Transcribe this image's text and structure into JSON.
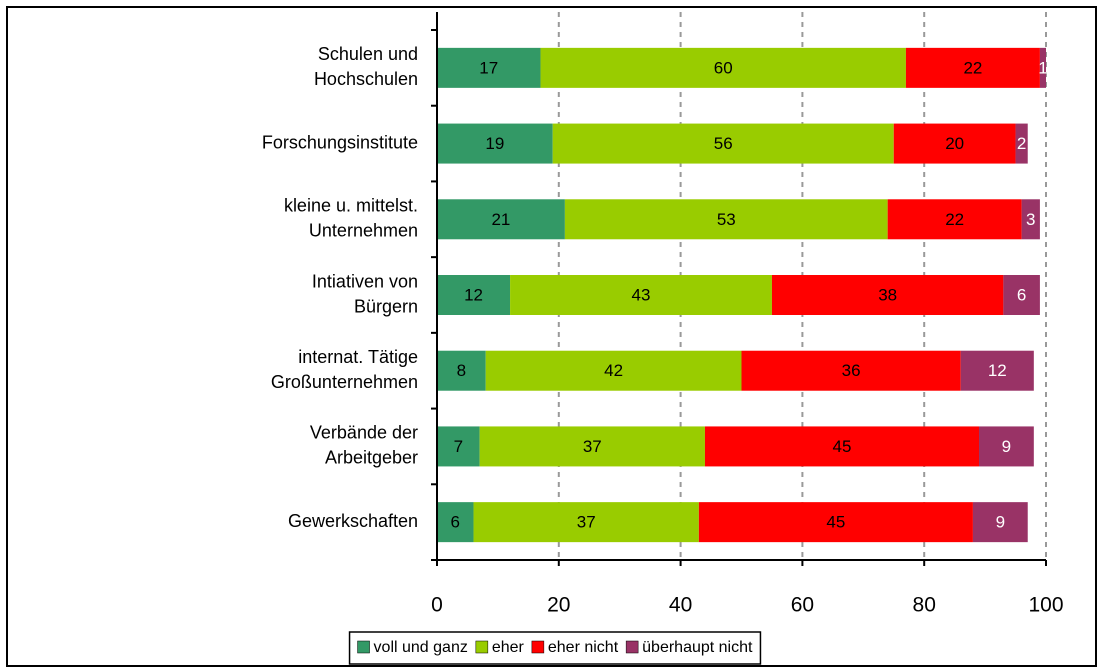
{
  "chart_data": {
    "type": "stacked-barh",
    "categories": [
      [
        "Schulen und",
        "Hochschulen"
      ],
      [
        "Forschungsinstitute"
      ],
      [
        "kleine u. mittelst.",
        "Unternehmen"
      ],
      [
        "Intiativen von",
        "Bürgern"
      ],
      [
        "internat. Tätige",
        "Großunternehmen"
      ],
      [
        "Verbände der",
        "Arbeitgeber"
      ],
      [
        "Gewerkschaften"
      ]
    ],
    "series": [
      {
        "name": "voll und ganz",
        "color": "#339966",
        "label_color": "#000000",
        "values": [
          17,
          19,
          21,
          12,
          8,
          7,
          6
        ]
      },
      {
        "name": "eher",
        "color": "#99cc00",
        "label_color": "#000000",
        "values": [
          60,
          56,
          53,
          43,
          42,
          37,
          37
        ]
      },
      {
        "name": "eher nicht",
        "color": "#ff0000",
        "label_color": "#000000",
        "values": [
          22,
          20,
          22,
          38,
          36,
          45,
          45
        ]
      },
      {
        "name": "überhaupt nicht",
        "color": "#993366",
        "label_color": "#ffffff",
        "values": [
          1,
          2,
          3,
          6,
          12,
          9,
          9
        ]
      }
    ],
    "xlim": [
      0,
      100
    ],
    "xticks": [
      0,
      20,
      40,
      60,
      80,
      100
    ],
    "grid": true,
    "legend": "bottom"
  }
}
